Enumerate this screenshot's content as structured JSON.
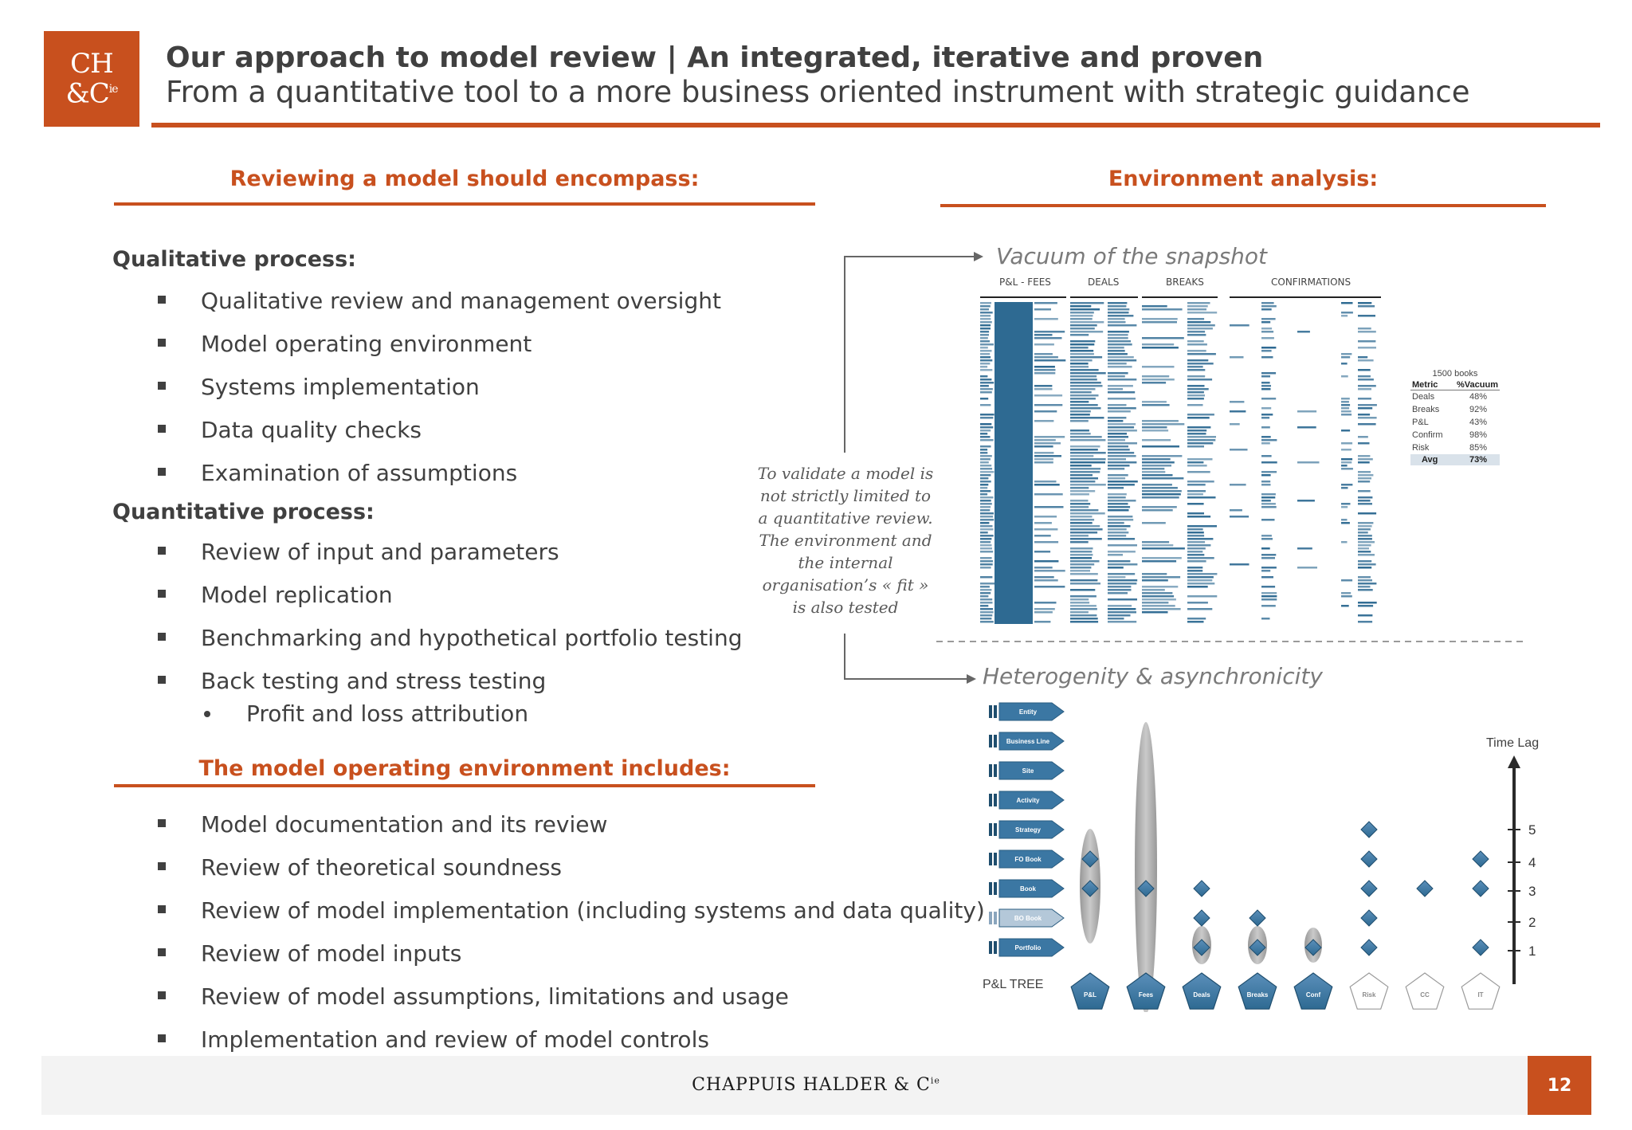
{
  "header": {
    "logo_line1": "CH",
    "logo_line2": "&C",
    "logo_sup": "ie",
    "title": "Our approach to model review | An integrated, iterative and proven",
    "subtitle": "From a quantitative tool to a more business oriented instrument with strategic guidance"
  },
  "left": {
    "heading": "Reviewing a model should encompass:",
    "qualitative": {
      "title": "Qualitative process:",
      "items": [
        "Qualitative review and management oversight",
        "Model operating environment",
        "Systems implementation",
        "Data quality checks",
        "Examination of assumptions"
      ]
    },
    "quantitative": {
      "title": "Quantitative process:",
      "items": [
        "Review of input and parameters",
        "Model replication",
        "Benchmarking and hypothetical portfolio testing",
        "Back testing and stress testing"
      ],
      "subitem": "Profit and loss attribution"
    },
    "env_heading": "The model operating environment includes:",
    "env_items": [
      "Model documentation and its review",
      "Review of theoretical soundness",
      "Review of model implementation (including systems and data quality)",
      "Review of model inputs",
      "Review of model assumptions, limitations and usage",
      "Implementation and review of model controls"
    ]
  },
  "note": "To validate a model is not strictly limited to a quantitative review. The environment and the internal organisation’s « fit » is also tested",
  "right": {
    "heading": "Environment analysis:",
    "vacuum": {
      "title": "Vacuum of the snapshot",
      "columns": [
        "P&L - FEES",
        "DEALS",
        "BREAKS",
        "CONFIRMATIONS"
      ],
      "table_caption": "1500 books",
      "table_headers": [
        "Metric",
        "%Vacuum"
      ],
      "rows": [
        {
          "metric": "Deals",
          "value": "48%"
        },
        {
          "metric": "Breaks",
          "value": "92%"
        },
        {
          "metric": "P&L",
          "value": "43%"
        },
        {
          "metric": "Confirm",
          "value": "98%"
        },
        {
          "metric": "Risk",
          "value": "85%"
        }
      ],
      "avg": {
        "metric": "Avg",
        "value": "73%"
      }
    },
    "hetero": {
      "title": "Heterogenity & asynchronicity",
      "levels": [
        "Entity",
        "Business Line",
        "Site",
        "Activity",
        "Strategy",
        "FO Book",
        "Book",
        "BO Book",
        "Portfolio"
      ],
      "tree_label": "P&L TREE",
      "nodes": [
        "P&L",
        "Fees",
        "Deals",
        "Breaks",
        "Conf",
        "Risk",
        "CC",
        "IT"
      ],
      "time_lag_label": "Time Lag",
      "time_ticks": [
        "5",
        "4",
        "3",
        "2",
        "1"
      ]
    }
  },
  "footer": {
    "brand": "CHAPPUIS HALDER & C",
    "brand_sup": "ie",
    "page": "12"
  },
  "colors": {
    "accent": "#c8501e",
    "text": "#404040",
    "blue": "#2e6a92"
  }
}
